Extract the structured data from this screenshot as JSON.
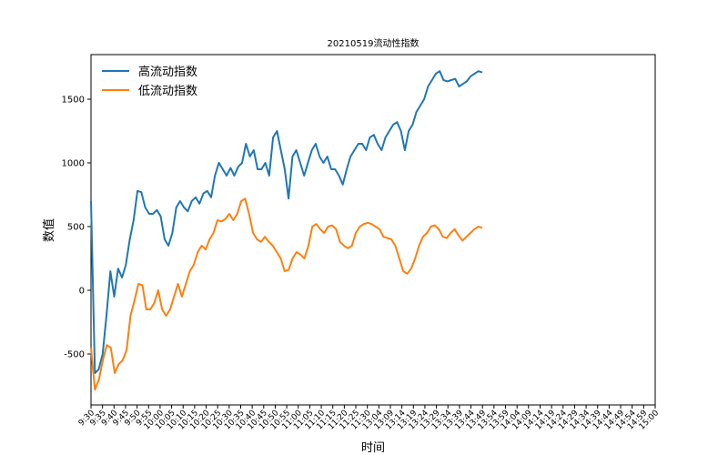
{
  "chart_data": {
    "type": "line",
    "title": "20210519流动性指数",
    "xlabel": "时间",
    "ylabel": "数值",
    "ylim": [
      -900,
      1850
    ],
    "yticks": [
      -500,
      0,
      500,
      1000,
      1500
    ],
    "legend": "upper-left",
    "grid": false,
    "x_tick_labels": [
      "9:30",
      "9:35",
      "9:40",
      "9:45",
      "9:50",
      "9:55",
      "10:00",
      "10:05",
      "10:10",
      "10:15",
      "10:20",
      "10:25",
      "10:30",
      "10:35",
      "10:40",
      "10:45",
      "10:50",
      "10:55",
      "11:00",
      "11:05",
      "11:10",
      "11:15",
      "11:20",
      "11:25",
      "11:30",
      "13:04",
      "13:09",
      "13:14",
      "13:19",
      "13:24",
      "13:29",
      "13:34",
      "13:39",
      "13:44",
      "13:49",
      "13:54",
      "13:59",
      "14:04",
      "14:09",
      "14:14",
      "14:19",
      "14:24",
      "14:29",
      "14:34",
      "14:39",
      "14:44",
      "14:49",
      "14:54",
      "14:59",
      "15:00"
    ],
    "series": [
      {
        "name": "高流动指数",
        "color": "#1f77b4",
        "values": [
          700,
          -650,
          -620,
          -500,
          -200,
          150,
          -50,
          170,
          100,
          200,
          400,
          550,
          780,
          770,
          650,
          600,
          600,
          630,
          580,
          400,
          350,
          450,
          650,
          700,
          650,
          620,
          700,
          730,
          680,
          760,
          780,
          730,
          900,
          1000,
          950,
          900,
          960,
          900,
          970,
          1000,
          1150,
          1050,
          1100,
          950,
          950,
          1000,
          900,
          1200,
          1250,
          1100,
          950,
          720,
          1050,
          1100,
          1000,
          900,
          1000,
          1100,
          1150,
          1050,
          1000,
          1050,
          950,
          950,
          900,
          830,
          950,
          1050,
          1100,
          1150,
          1150,
          1100,
          1200,
          1220,
          1150,
          1100,
          1200,
          1250,
          1300,
          1320,
          1250,
          1100,
          1250,
          1300,
          1400,
          1450,
          1500,
          1600,
          1650,
          1700,
          1720,
          1650,
          1640,
          1650,
          1660,
          1600,
          1620,
          1640,
          1680,
          1700,
          1720,
          1710
        ]
      },
      {
        "name": "低流动指数",
        "color": "#ff7f0e",
        "values": [
          -450,
          -780,
          -700,
          -550,
          -430,
          -450,
          -650,
          -580,
          -550,
          -470,
          -200,
          -80,
          50,
          40,
          -150,
          -150,
          -100,
          0,
          -150,
          -200,
          -150,
          -50,
          50,
          -50,
          50,
          150,
          200,
          300,
          350,
          320,
          400,
          450,
          550,
          540,
          560,
          600,
          550,
          600,
          700,
          720,
          600,
          450,
          400,
          380,
          420,
          380,
          350,
          300,
          250,
          150,
          160,
          250,
          300,
          280,
          250,
          350,
          500,
          520,
          480,
          450,
          500,
          510,
          480,
          380,
          350,
          330,
          350,
          450,
          500,
          520,
          530,
          520,
          500,
          480,
          420,
          410,
          400,
          350,
          250,
          150,
          130,
          170,
          250,
          350,
          420,
          450,
          500,
          510,
          480,
          420,
          410,
          450,
          480,
          430,
          390,
          420,
          450,
          480,
          500,
          490
        ]
      }
    ]
  }
}
